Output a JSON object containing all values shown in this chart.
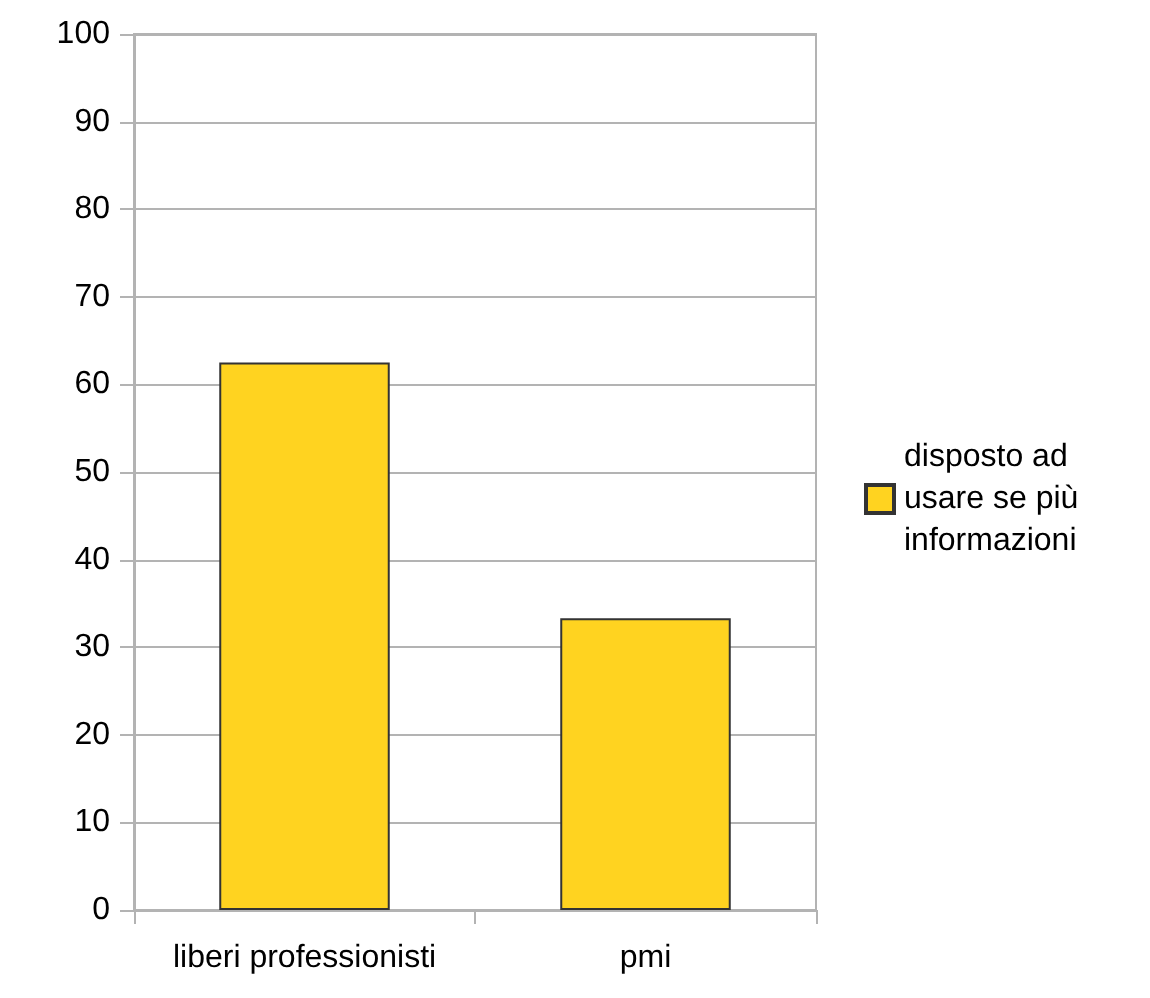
{
  "chart_data": {
    "type": "bar",
    "categories": [
      "liberi professionisti",
      "pmi"
    ],
    "series": [
      {
        "name": "disposto ad usare se più informazioni",
        "color": "#ffd320",
        "values": [
          62.5,
          33.3
        ]
      }
    ],
    "ylim": [
      0,
      100
    ],
    "yticks": [
      0,
      10,
      20,
      30,
      40,
      50,
      60,
      70,
      80,
      90,
      100
    ],
    "grid": "y",
    "legend": "right"
  }
}
